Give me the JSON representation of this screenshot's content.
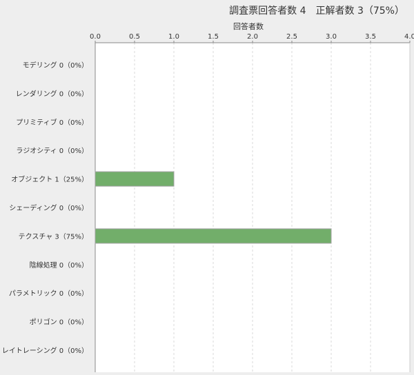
{
  "chart_data": {
    "type": "bar",
    "orientation": "horizontal",
    "title": "調査票回答者数 4　正解者数 3（75%）",
    "xlabel": "回答者数",
    "ylabel": "",
    "xlim": [
      0,
      4
    ],
    "x_ticks": [
      "0.0",
      "0.5",
      "1.0",
      "1.5",
      "2.0",
      "2.5",
      "3.0",
      "3.5",
      "4.0"
    ],
    "x_axis_position": "top",
    "grid": "vertical dashed",
    "categories": [
      "モデリング 0（0%）",
      "レンダリング 0（0%）",
      "プリミティブ 0（0%）",
      "ラジオシティ 0（0%）",
      "オブジェクト 1（25%）",
      "シェーディング 0（0%）",
      "テクスチャ 3（75%）",
      "陰線処理 0（0%）",
      "パラメトリック 0（0%）",
      "ポリゴン 0（0%）",
      "レイトレーシング 0（0%）"
    ],
    "values": [
      0,
      0,
      0,
      0,
      1,
      0,
      3,
      0,
      0,
      0,
      0
    ],
    "bar_color": "#72ae6a"
  }
}
